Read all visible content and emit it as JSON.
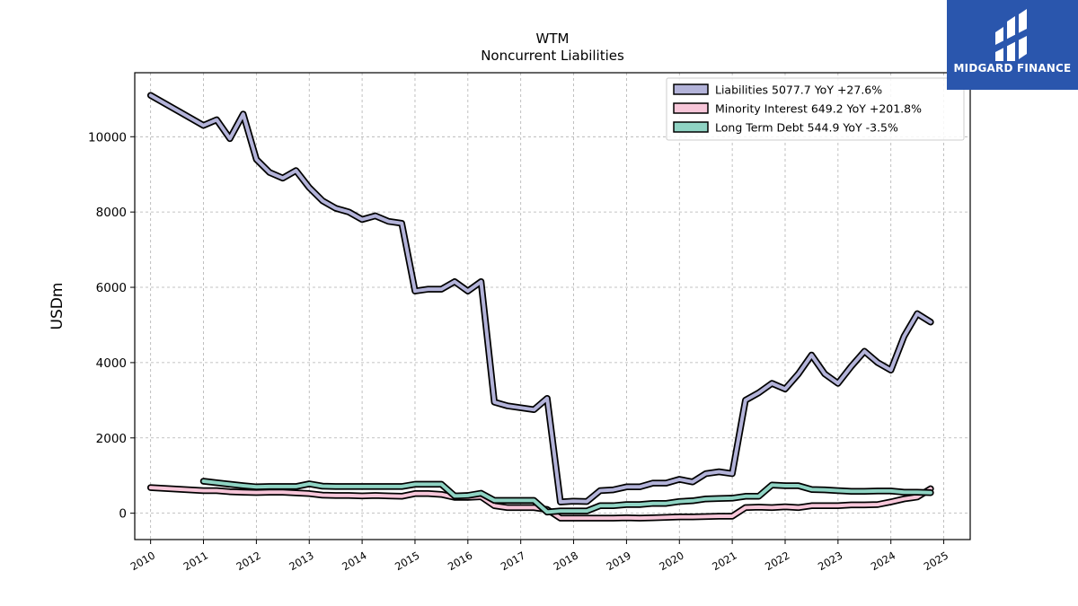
{
  "brand": {
    "name": "MIDGARD FINANCE",
    "color": "#2a56ad",
    "icon": "midgard-logo-icon"
  },
  "chart_data": {
    "type": "line",
    "title": "WTM",
    "subtitle": "Noncurrent  Liabilities",
    "xlabel": "",
    "ylabel": "USDm",
    "xlim": [
      2009.7,
      2025.5
    ],
    "ylim": [
      -700,
      11700
    ],
    "yticks": [
      0,
      2000,
      4000,
      6000,
      8000,
      10000
    ],
    "xticks": [
      "2010",
      "2011",
      "2012",
      "2013",
      "2014",
      "2015",
      "2016",
      "2017",
      "2018",
      "2019",
      "2020",
      "2021",
      "2022",
      "2023",
      "2024",
      "2025"
    ],
    "grid": true,
    "legend_position": "top-right",
    "series": [
      {
        "name": "Liabilities  5077.7 YoY +27.6%",
        "color": "#b3b3d9",
        "x": [
          2010.0,
          2011.0,
          2011.25,
          2011.5,
          2011.75,
          2012.0,
          2012.25,
          2012.5,
          2012.75,
          2013.0,
          2013.25,
          2013.5,
          2013.75,
          2014.0,
          2014.25,
          2014.5,
          2014.75,
          2015.0,
          2015.25,
          2015.5,
          2015.75,
          2016.0,
          2016.25,
          2016.5,
          2016.75,
          2017.0,
          2017.25,
          2017.5,
          2017.75,
          2018.0,
          2018.25,
          2018.5,
          2018.75,
          2019.0,
          2019.25,
          2019.5,
          2019.75,
          2020.0,
          2020.25,
          2020.5,
          2020.75,
          2021.0,
          2021.25,
          2021.5,
          2021.75,
          2022.0,
          2022.25,
          2022.5,
          2022.75,
          2023.0,
          2023.25,
          2023.5,
          2023.75,
          2024.0,
          2024.25,
          2024.5,
          2024.75
        ],
        "values": [
          11100,
          10300,
          10450,
          9950,
          10600,
          9400,
          9050,
          8900,
          9100,
          8650,
          8300,
          8100,
          8000,
          7800,
          7900,
          7750,
          7700,
          5900,
          5950,
          5950,
          6150,
          5900,
          6150,
          2950,
          2850,
          2800,
          2750,
          3050,
          300,
          320,
          310,
          600,
          620,
          700,
          700,
          800,
          800,
          900,
          830,
          1050,
          1100,
          1050,
          3000,
          3200,
          3450,
          3300,
          3700,
          4200,
          3700,
          3450,
          3900,
          4300,
          4000,
          3800,
          4700,
          5300,
          5077.7
        ]
      },
      {
        "name": "Minority Interest  649.2 YoY +201.8%",
        "color": "#f7c6d9",
        "x": [
          2010.0,
          2011.0,
          2011.25,
          2011.5,
          2011.75,
          2012.0,
          2012.25,
          2012.5,
          2012.75,
          2013.0,
          2013.25,
          2013.5,
          2013.75,
          2014.0,
          2014.25,
          2014.5,
          2014.75,
          2015.0,
          2015.25,
          2015.5,
          2015.75,
          2016.0,
          2016.25,
          2016.5,
          2016.75,
          2017.0,
          2017.25,
          2017.5,
          2017.75,
          2018.0,
          2018.25,
          2018.5,
          2018.75,
          2019.0,
          2019.25,
          2019.5,
          2019.75,
          2020.0,
          2020.25,
          2020.5,
          2020.75,
          2021.0,
          2021.25,
          2021.5,
          2021.75,
          2022.0,
          2022.25,
          2022.5,
          2022.75,
          2023.0,
          2023.25,
          2023.5,
          2023.75,
          2024.0,
          2024.25,
          2024.5,
          2024.75
        ],
        "values": [
          680,
          600,
          600,
          570,
          560,
          550,
          560,
          560,
          540,
          520,
          480,
          470,
          470,
          460,
          470,
          460,
          450,
          520,
          520,
          500,
          420,
          420,
          440,
          200,
          150,
          150,
          150,
          100,
          -130,
          -130,
          -130,
          -130,
          -130,
          -120,
          -130,
          -120,
          -110,
          -100,
          -100,
          -90,
          -80,
          -80,
          150,
          160,
          150,
          170,
          150,
          200,
          200,
          200,
          220,
          220,
          230,
          300,
          380,
          430,
          649.2
        ]
      },
      {
        "name": "Long Term Debt  544.9 YoY -3.5%",
        "color": "#8fd3c3",
        "x": [
          2011.0,
          2011.25,
          2011.5,
          2011.75,
          2012.0,
          2012.25,
          2012.5,
          2012.75,
          2013.0,
          2013.25,
          2013.5,
          2013.75,
          2014.0,
          2014.25,
          2014.5,
          2014.75,
          2015.0,
          2015.25,
          2015.5,
          2015.75,
          2016.0,
          2016.25,
          2016.5,
          2016.75,
          2017.0,
          2017.25,
          2017.5,
          2017.75,
          2018.0,
          2018.25,
          2018.5,
          2018.75,
          2019.0,
          2019.25,
          2019.5,
          2019.75,
          2020.0,
          2020.25,
          2020.5,
          2020.75,
          2021.0,
          2021.25,
          2021.5,
          2021.75,
          2022.0,
          2022.25,
          2022.5,
          2022.75,
          2023.0,
          2023.25,
          2023.5,
          2023.75,
          2024.0,
          2024.25,
          2024.5,
          2024.75
        ],
        "values": [
          850,
          810,
          770,
          730,
          700,
          710,
          710,
          710,
          780,
          720,
          710,
          710,
          710,
          710,
          710,
          710,
          770,
          770,
          770,
          460,
          470,
          530,
          340,
          340,
          340,
          340,
          30,
          60,
          60,
          60,
          200,
          200,
          230,
          230,
          260,
          260,
          310,
          330,
          380,
          390,
          400,
          450,
          450,
          750,
          730,
          730,
          630,
          620,
          600,
          580,
          580,
          590,
          590,
          560,
          560,
          544.9
        ]
      }
    ]
  }
}
